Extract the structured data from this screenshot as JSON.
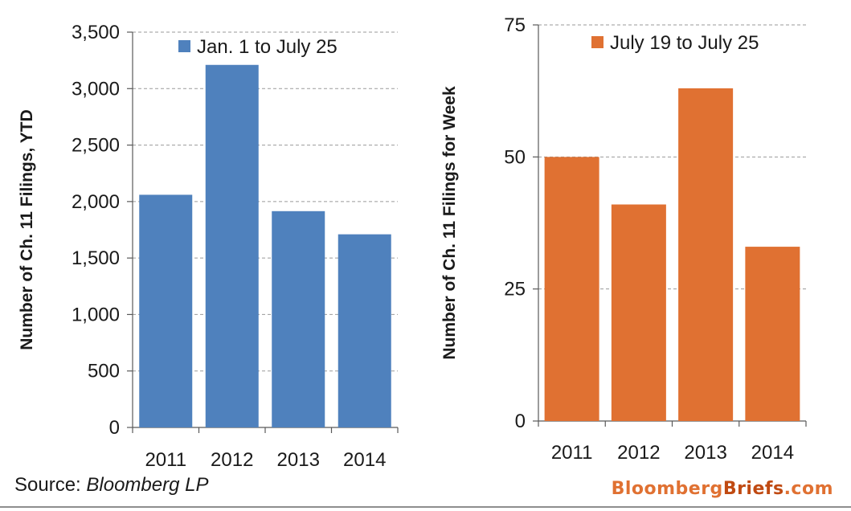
{
  "chart_data": [
    {
      "type": "bar",
      "categories": [
        "2011",
        "2012",
        "2013",
        "2014"
      ],
      "series": [
        {
          "name": "Jan. 1 to July 25",
          "values": [
            2060,
            3210,
            1915,
            1710
          ]
        }
      ],
      "ylabel": "Number of Ch. 11 Filings, YTD",
      "ylim": [
        0,
        3500
      ],
      "yticks": [
        0,
        500,
        1000,
        1500,
        2000,
        2500,
        3000,
        3500
      ],
      "ytick_labels": [
        "0",
        "500",
        "1,000",
        "1,500",
        "2,000",
        "2,500",
        "3,000",
        "3,500"
      ],
      "grid": true,
      "legend_position": "top",
      "color": "#4f81bd"
    },
    {
      "type": "bar",
      "categories": [
        "2011",
        "2012",
        "2013",
        "2014"
      ],
      "series": [
        {
          "name": "July 19 to July 25",
          "values": [
            50,
            41,
            63,
            33
          ]
        }
      ],
      "ylabel": "Number of Ch. 11 Filings for Week",
      "ylim": [
        0,
        75
      ],
      "yticks": [
        0,
        25,
        50,
        75
      ],
      "ytick_labels": [
        "0",
        "25",
        "50",
        "75"
      ],
      "grid": true,
      "legend_position": "top",
      "color": "#e07132"
    }
  ],
  "footer": {
    "source_prefix": "Source: ",
    "source_name": "Bloomberg LP",
    "brand_part1": "Bloomberg",
    "brand_part2": "Briefs",
    "brand_part3": ".com",
    "brand_color_main": "#e07132",
    "brand_color_accent": "#c04a12"
  }
}
